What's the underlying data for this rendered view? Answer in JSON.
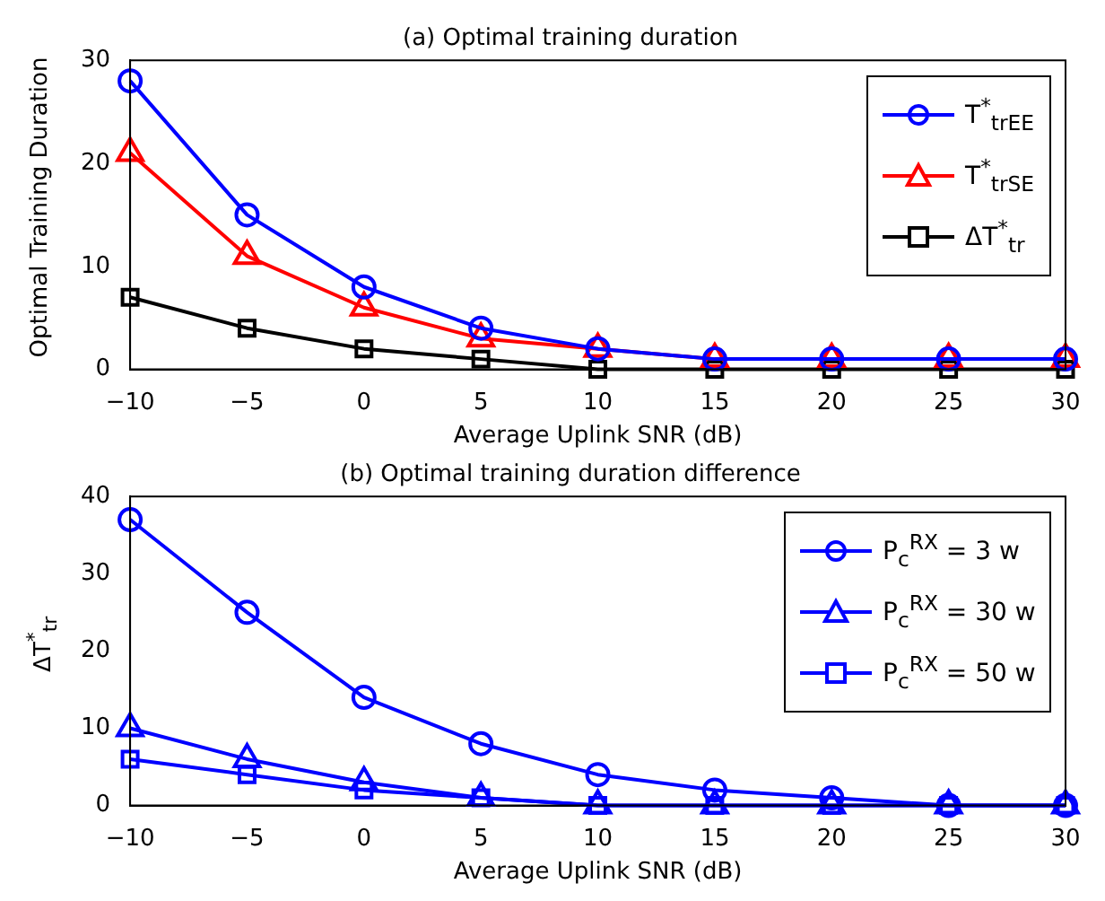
{
  "chart_data": [
    {
      "type": "line",
      "title": "(a) Optimal training duration",
      "xlabel": "Average Uplink SNR (dB)",
      "ylabel": "Optimal Training Duration",
      "x": [
        -10,
        -5,
        0,
        5,
        10,
        15,
        20,
        25,
        30
      ],
      "xlim": [
        -10,
        30
      ],
      "xticks": [
        -10,
        -5,
        0,
        5,
        10,
        15,
        20,
        25,
        30
      ],
      "ylim": [
        0,
        30
      ],
      "yticks": [
        0,
        10,
        20,
        30
      ],
      "grid": false,
      "legend": "top right",
      "series": [
        {
          "name": "T$^{*}$$_{trEE}$",
          "color": "#0000ff",
          "marker": "circle",
          "values": [
            28,
            15,
            8,
            4,
            2,
            1,
            1,
            1,
            1
          ]
        },
        {
          "name": "T$^{*}$$_{trSE}$",
          "color": "#ff0000",
          "marker": "triangle",
          "values": [
            21,
            11,
            6,
            3,
            2,
            1,
            1,
            1,
            1
          ]
        },
        {
          "name": "ΔT$^{*}$$_{tr}$",
          "color": "#000000",
          "marker": "square",
          "values": [
            7,
            4,
            2,
            1,
            0,
            0,
            0,
            0,
            0
          ]
        }
      ]
    },
    {
      "type": "line",
      "title": "(b) Optimal training duration difference",
      "xlabel": "Average Uplink SNR (dB)",
      "ylabel": "ΔT$^{*}$$_{tr}$",
      "x": [
        -10,
        -5,
        0,
        5,
        10,
        15,
        20,
        25,
        30
      ],
      "xlim": [
        -10,
        30
      ],
      "xticks": [
        -10,
        -5,
        0,
        5,
        10,
        15,
        20,
        25,
        30
      ],
      "ylim": [
        0,
        40
      ],
      "yticks": [
        0,
        10,
        20,
        30,
        40
      ],
      "grid": false,
      "legend": "top right",
      "series": [
        {
          "name": "P$_{c}$$^{RX}$ = 3 w",
          "color": "#0000ff",
          "marker": "circle",
          "values": [
            37,
            25,
            14,
            8,
            4,
            2,
            1,
            0,
            0
          ]
        },
        {
          "name": "P$_{c}$$^{RX}$ = 30 w",
          "color": "#0000ff",
          "marker": "triangle",
          "values": [
            10,
            6,
            3,
            1,
            0,
            0,
            0,
            0,
            0
          ]
        },
        {
          "name": "P$_{c}$$^{RX}$ = 50 w",
          "color": "#0000ff",
          "marker": "square",
          "values": [
            6,
            4,
            2,
            1,
            0,
            0,
            0,
            0,
            0
          ]
        }
      ]
    }
  ]
}
